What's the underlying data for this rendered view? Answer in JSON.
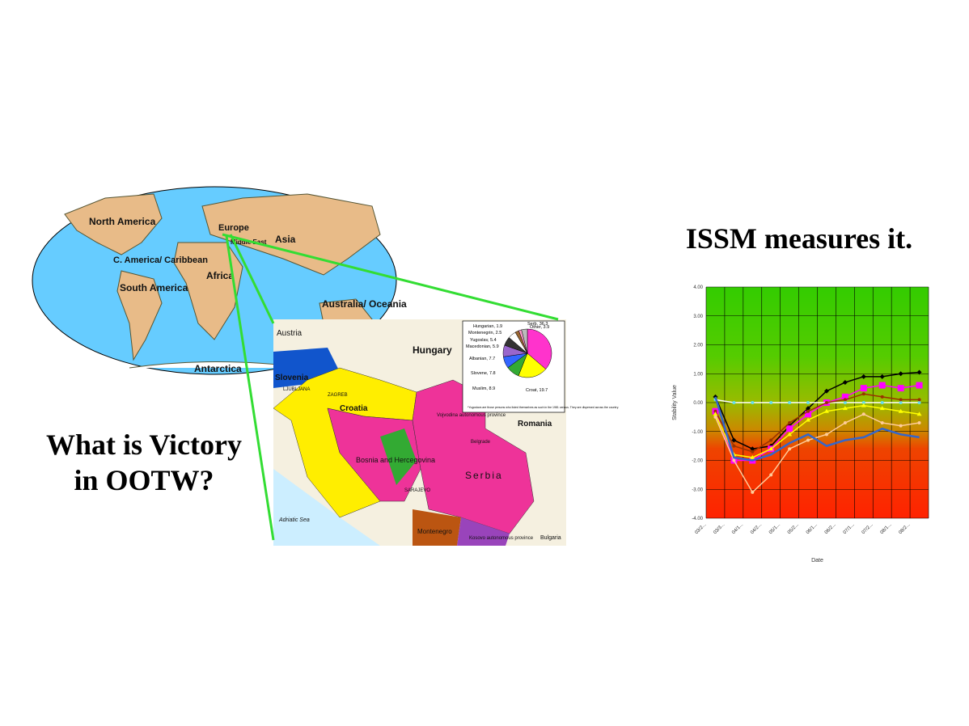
{
  "slide": {
    "title_left": [
      "What is Victory",
      "in OOTW?"
    ],
    "title_right": "ISSM measures it."
  },
  "world_map": {
    "labels": [
      "North America",
      "C. America/ Caribbean",
      "South America",
      "Europe",
      "Asia",
      "Middle East",
      "Africa",
      "Australia/ Oceania",
      "Antarctica"
    ]
  },
  "balkan_map": {
    "labels": [
      "Austria",
      "Hungary",
      "Slovenia",
      "LJUBLJANA",
      "ZAGREB",
      "Croatia",
      "Romania",
      "Vojvodina autonomous province",
      "Belgrade",
      "Bosnia and Hercegovina",
      "SARAJEVO",
      "Serbia",
      "Adriatic Sea",
      "Montenegro",
      "Kosovo autonomous province",
      "Bulgaria"
    ]
  },
  "chart_data": [
    {
      "type": "line",
      "xlabel": "Date",
      "ylabel": "Stability Value",
      "categories": [
        "03/2...",
        "03/3...",
        "04/1...",
        "04/2...",
        "05/1...",
        "05/2...",
        "06/1...",
        "06/2...",
        "07/1...",
        "07/2...",
        "08/1...",
        "08/2..."
      ],
      "ylim": [
        -4,
        4
      ],
      "yticks": [
        {
          "value": -4,
          "label": "-4.00"
        },
        {
          "value": -3,
          "label": "-3.00"
        },
        {
          "value": -2,
          "label": "-2.00"
        },
        {
          "value": -1,
          "label": "-1.00"
        },
        {
          "value": 0,
          "label": "0.00"
        },
        {
          "value": 1,
          "label": "1.00"
        },
        {
          "value": 2,
          "label": "2.00"
        },
        {
          "value": 3,
          "label": "3.00"
        },
        {
          "value": 4,
          "label": "4.00"
        }
      ],
      "grid": true,
      "series": [
        {
          "color": "#000000",
          "marker": "diamond",
          "values": [
            0.2,
            -1.3,
            -1.6,
            -1.5,
            -0.8,
            -0.2,
            0.4,
            0.7,
            0.9,
            0.9,
            1.0,
            1.05
          ]
        },
        {
          "color": "#ff00ff",
          "marker": "square",
          "values": [
            -0.3,
            -2.0,
            -2.0,
            -1.6,
            -0.9,
            -0.4,
            0.0,
            0.2,
            0.5,
            0.6,
            0.5,
            0.6
          ]
        },
        {
          "color": "#ffffff",
          "marker": "circle",
          "values": [
            0.1,
            0,
            0,
            0,
            0,
            0,
            0,
            0,
            0,
            0,
            0,
            0
          ]
        },
        {
          "color": "#993300",
          "marker": "circle",
          "values": [
            -0.3,
            -1.5,
            -1.7,
            -1.3,
            -0.7,
            -0.3,
            0,
            0.1,
            0.3,
            0.2,
            0.1,
            0.1
          ]
        },
        {
          "color": "#ffff00",
          "marker": "triangle",
          "values": [
            -0.4,
            -1.8,
            -1.9,
            -1.6,
            -1.1,
            -0.6,
            -0.3,
            -0.2,
            -0.1,
            -0.2,
            -0.3,
            -0.4
          ]
        },
        {
          "color": "#ffcc99",
          "marker": "circle",
          "values": [
            -0.5,
            -2.0,
            -3.1,
            -2.5,
            -1.6,
            -1.3,
            -1.1,
            -0.7,
            -0.4,
            -0.7,
            -0.8,
            -0.7
          ]
        },
        {
          "color": "#3366cc",
          "marker": "none",
          "values": [
            0.2,
            -1.9,
            -2.0,
            -1.8,
            -1.4,
            -1.1,
            -1.5,
            -1.3,
            -1.2,
            -0.9,
            -1.1,
            -1.2
          ]
        }
      ]
    },
    {
      "type": "pie",
      "categories": [
        "Serb",
        "Croat",
        "Muslim",
        "Slovene",
        "Albanian",
        "Macedonian",
        "Yugoslav",
        "Montenegrin",
        "Hungarian",
        "Other"
      ],
      "values": [
        36.3,
        19.7,
        8.9,
        7.8,
        7.7,
        5.9,
        5.4,
        2.5,
        1.9,
        3.9
      ],
      "colors": [
        "#ff33cc",
        "#ffff00",
        "#33aa33",
        "#3366ff",
        "#9966cc",
        "#333333",
        "#ffffff",
        "#996633",
        "#ff99cc",
        "#bbbbbb"
      ],
      "annotation": "*Yugoslavs are those persons who listed themselves as such in the 1981 census. They are dispersed across the country."
    }
  ]
}
